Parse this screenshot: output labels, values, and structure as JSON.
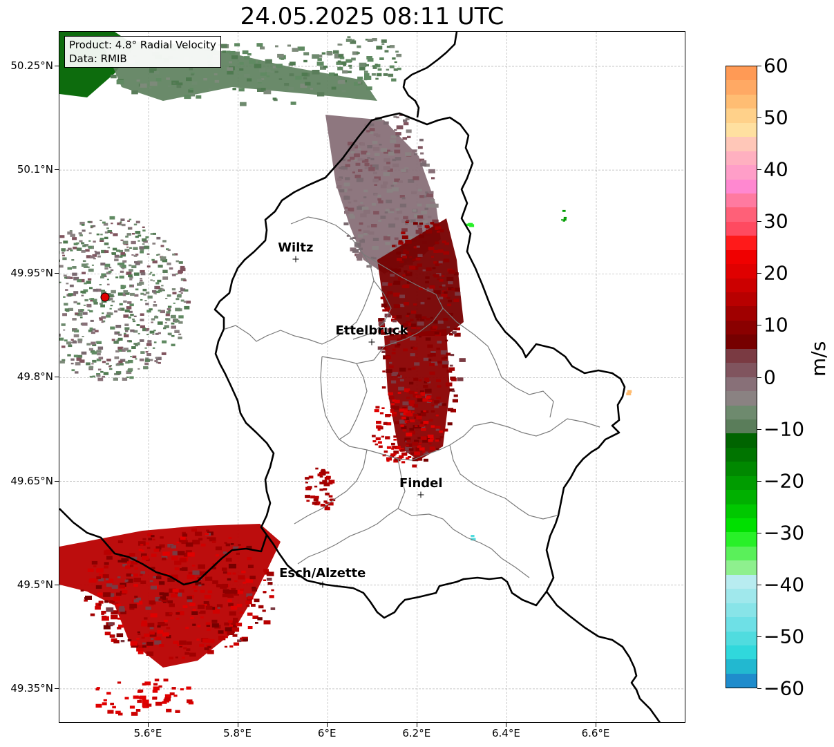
{
  "title": "24.05.2025 08:11 UTC",
  "info": {
    "product": "Product: 4.8° Radial Velocity",
    "source": "Data: RMIB"
  },
  "map": {
    "lat_ticks": [
      "50.25°N",
      "50.1°N",
      "49.95°N",
      "49.8°N",
      "49.65°N",
      "49.5°N",
      "49.35°N"
    ],
    "lon_ticks": [
      "5.6°E",
      "5.8°E",
      "6°E",
      "6.2°E",
      "6.4°E",
      "6.6°E"
    ],
    "cities": [
      {
        "name": "Wiltz",
        "lon": 5.93,
        "lat": 49.97
      },
      {
        "name": "Ettelbruck",
        "lon": 6.1,
        "lat": 49.85
      },
      {
        "name": "Findel",
        "lon": 6.21,
        "lat": 49.63
      },
      {
        "name": "Esch/Alzette",
        "lon": 5.99,
        "lat": 49.5
      }
    ],
    "radar_site": {
      "lon": 5.505,
      "lat": 49.915
    },
    "grid": true
  },
  "colorbar": {
    "unit": "m/s",
    "min": -60,
    "max": 60,
    "ticks": [
      "60",
      "50",
      "40",
      "30",
      "20",
      "10",
      "0",
      "−10",
      "−20",
      "−30",
      "−40",
      "−50",
      "−60"
    ],
    "colors": [
      "#ff9a55",
      "#ffa964",
      "#ffbd73",
      "#ffd18a",
      "#ffe0a0",
      "#ffc7b8",
      "#ffb0c0",
      "#ff9ec8",
      "#ff88d0",
      "#ff7aa0",
      "#ff6078",
      "#ff4a60",
      "#ff1a1a",
      "#f00000",
      "#e00000",
      "#cc0000",
      "#b80000",
      "#a00000",
      "#8a0000",
      "#760000",
      "#7a3a42",
      "#80545e",
      "#887078",
      "#8a8282",
      "#6e8a6e",
      "#5a7d5a",
      "#006400",
      "#007400",
      "#008800",
      "#009c00",
      "#00b000",
      "#00c800",
      "#00e000",
      "#28f028",
      "#5af05a",
      "#8ef08e",
      "#b8ecf0",
      "#a0e8ec",
      "#88e4e8",
      "#6ee0e6",
      "#50dcdf",
      "#30d8dc",
      "#22b8d0",
      "#1f8ccc"
    ]
  }
}
